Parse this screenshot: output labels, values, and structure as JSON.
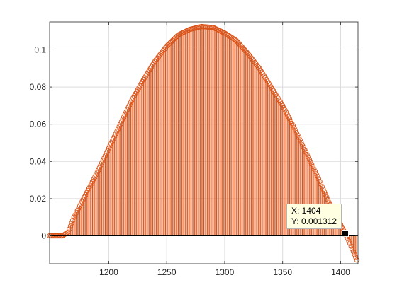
{
  "chart_data": {
    "type": "stem",
    "title": "",
    "xlabel": "",
    "ylabel": "",
    "xlim": [
      1149,
      1415
    ],
    "ylim": [
      -0.015,
      0.115
    ],
    "grid": true,
    "xticks": [
      1200,
      1250,
      1300,
      1350,
      1400
    ],
    "yticks": [
      0,
      0.02,
      0.04,
      0.06,
      0.08,
      0.1
    ],
    "xtick_labels": [
      "1200",
      "1250",
      "1300",
      "1350",
      "1400"
    ],
    "ytick_labels": [
      "0",
      "0.02",
      "0.04",
      "0.06",
      "0.08",
      "0.1"
    ],
    "series": [
      {
        "name": "stem",
        "color": "#d95319",
        "marker": "circle",
        "x_start": 1149,
        "x_end": 1414,
        "x_step": 1,
        "baseline": 0,
        "keypoints": [
          [
            1149,
            0
          ],
          [
            1157,
            0
          ],
          [
            1160,
            0
          ],
          [
            1165,
            0.002
          ],
          [
            1170,
            0.01
          ],
          [
            1180,
            0.022
          ],
          [
            1190,
            0.034
          ],
          [
            1200,
            0.047
          ],
          [
            1210,
            0.06
          ],
          [
            1220,
            0.073
          ],
          [
            1230,
            0.084
          ],
          [
            1240,
            0.094
          ],
          [
            1250,
            0.102
          ],
          [
            1260,
            0.108
          ],
          [
            1270,
            0.111
          ],
          [
            1280,
            0.1125
          ],
          [
            1290,
            0.112
          ],
          [
            1300,
            0.109
          ],
          [
            1310,
            0.105
          ],
          [
            1320,
            0.098
          ],
          [
            1330,
            0.09
          ],
          [
            1340,
            0.08
          ],
          [
            1350,
            0.07
          ],
          [
            1360,
            0.058
          ],
          [
            1370,
            0.045
          ],
          [
            1380,
            0.032
          ],
          [
            1390,
            0.018
          ],
          [
            1400,
            0.006
          ],
          [
            1404,
            0.001312
          ],
          [
            1408,
            -0.004
          ],
          [
            1412,
            -0.01
          ],
          [
            1414,
            -0.013
          ]
        ]
      }
    ],
    "datatip": {
      "x": 1404,
      "y": 0.001312
    }
  },
  "datatip": {
    "x_text": "X: 1404",
    "y_text": "Y: 0.001312"
  },
  "colors": {
    "stem": "#d95319",
    "grid": "#dcdcdc",
    "axes": "#262626",
    "datatip_bg": "#ffffe1"
  }
}
